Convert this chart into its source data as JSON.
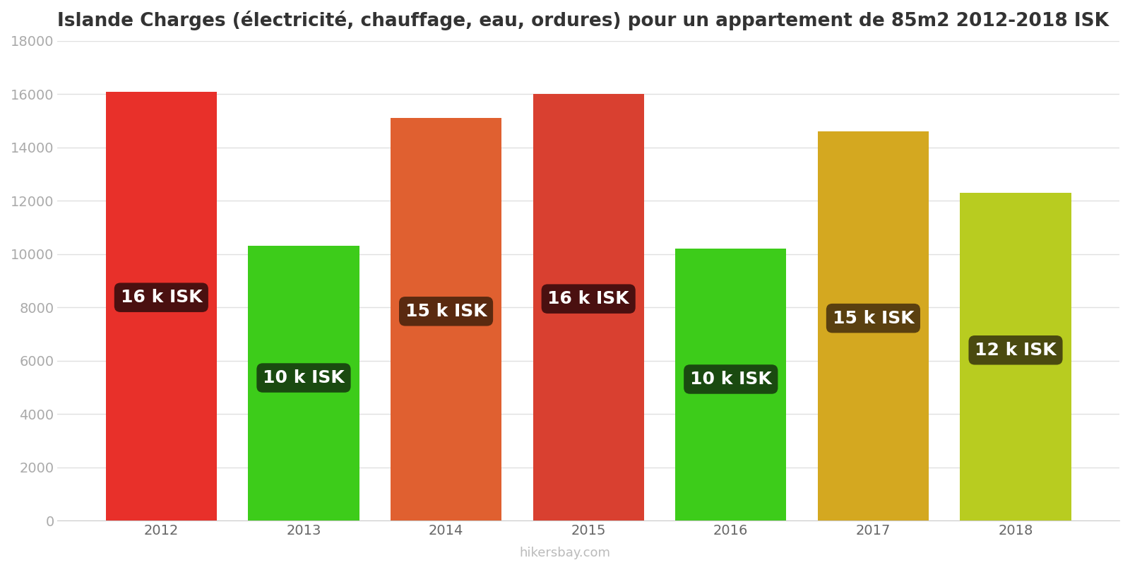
{
  "years": [
    2012,
    2013,
    2014,
    2015,
    2016,
    2017,
    2018
  ],
  "values": [
    16100,
    10300,
    15100,
    16000,
    10200,
    14600,
    12300
  ],
  "bar_colors": [
    "#e8302a",
    "#3dcc1a",
    "#e06030",
    "#d94030",
    "#3dcc1a",
    "#d4a820",
    "#b8cc20"
  ],
  "label_texts": [
    "16 k ISK",
    "10 k ISK",
    "15 k ISK",
    "16 k ISK",
    "10 k ISK",
    "15 k ISK",
    "12 k ISK"
  ],
  "label_bg_colors": [
    "#4a1010",
    "#1a4a10",
    "#5a2a10",
    "#4a1010",
    "#1a4a10",
    "#5a4010",
    "#4a4a10"
  ],
  "label_x_offset": [
    -0.15,
    0.0,
    0.0,
    0.0,
    0.0,
    0.0,
    0.0
  ],
  "title": "Islande Charges (électricité, chauffage, eau, ordures) pour un appartement de 85m2 2012-2018 ISK",
  "ylim": [
    0,
    18000
  ],
  "yticks": [
    0,
    2000,
    4000,
    6000,
    8000,
    10000,
    12000,
    14000,
    16000,
    18000
  ],
  "footer": "hikersbay.com",
  "title_fontsize": 19,
  "tick_fontsize": 14,
  "label_fontsize": 18,
  "footer_fontsize": 13,
  "background_color": "#ffffff",
  "grid_color": "#e0e0e0",
  "bar_width": 0.78
}
